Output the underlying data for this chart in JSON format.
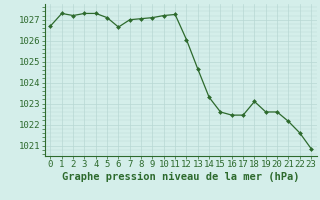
{
  "hours": [
    0,
    1,
    2,
    3,
    4,
    5,
    6,
    7,
    8,
    9,
    10,
    11,
    12,
    13,
    14,
    15,
    16,
    17,
    18,
    19,
    20,
    21,
    22,
    23
  ],
  "pressure": [
    1026.7,
    1027.3,
    1027.2,
    1027.3,
    1027.3,
    1027.1,
    1026.65,
    1027.0,
    1027.05,
    1027.1,
    1027.2,
    1027.25,
    1026.05,
    1024.65,
    1023.3,
    1022.6,
    1022.45,
    1022.45,
    1023.1,
    1022.6,
    1022.6,
    1022.15,
    1021.6,
    1020.85
  ],
  "ylim": [
    1020.5,
    1027.75
  ],
  "yticks": [
    1021,
    1022,
    1023,
    1024,
    1025,
    1026,
    1027
  ],
  "xlabel": "Graphe pression niveau de la mer (hPa)",
  "line_color": "#2d6a2d",
  "marker_color": "#2d6a2d",
  "bg_color": "#d4eeea",
  "grid_color": "#b8d8d4",
  "xlabel_fontsize": 7.5,
  "tick_fontsize": 6.5
}
